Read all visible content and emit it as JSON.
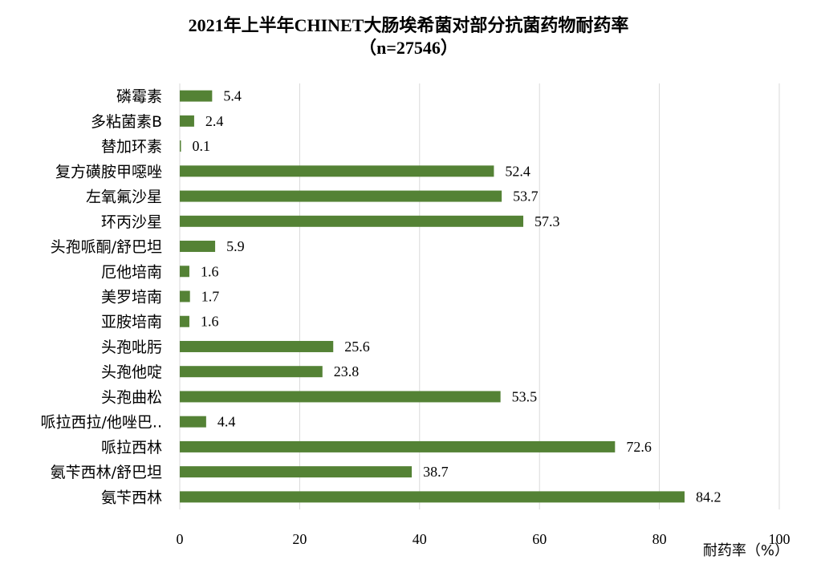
{
  "chart_data": {
    "type": "bar",
    "orientation": "horizontal",
    "title": "2021年上半年CHINET大肠埃希菌对部分抗菌药物耐药率",
    "subtitle": "（n=27546）",
    "xlabel": "耐药率（%）",
    "ylabel": "",
    "xlim": [
      0,
      100
    ],
    "xticks": [
      "0",
      "20",
      "40",
      "60",
      "80",
      "100"
    ],
    "grid": true,
    "legend": "none",
    "bar_color": "#548235",
    "categories": [
      "磷霉素",
      "多粘菌素B",
      "替加环素",
      "复方磺胺甲噁唑",
      "左氧氟沙星",
      "环丙沙星",
      "头孢哌酮/舒巴坦",
      "厄他培南",
      "美罗培南",
      "亚胺培南",
      "头孢吡肟",
      "头孢他啶",
      "头孢曲松",
      "哌拉西拉/他唑巴..",
      "哌拉西林",
      "氨苄西林/舒巴坦",
      "氨苄西林"
    ],
    "values": [
      5.4,
      2.4,
      0.1,
      52.4,
      53.7,
      57.3,
      5.9,
      1.6,
      1.7,
      1.6,
      25.6,
      23.8,
      53.5,
      4.4,
      72.6,
      38.7,
      84.2
    ],
    "value_labels": [
      "5.4",
      "2.4",
      "0.1",
      "52.4",
      "53.7",
      "57.3",
      "5.9",
      "1.6",
      "1.7",
      "1.6",
      "25.6",
      "23.8",
      "53.5",
      "4.4",
      "72.6",
      "38.7",
      "84.2"
    ]
  }
}
